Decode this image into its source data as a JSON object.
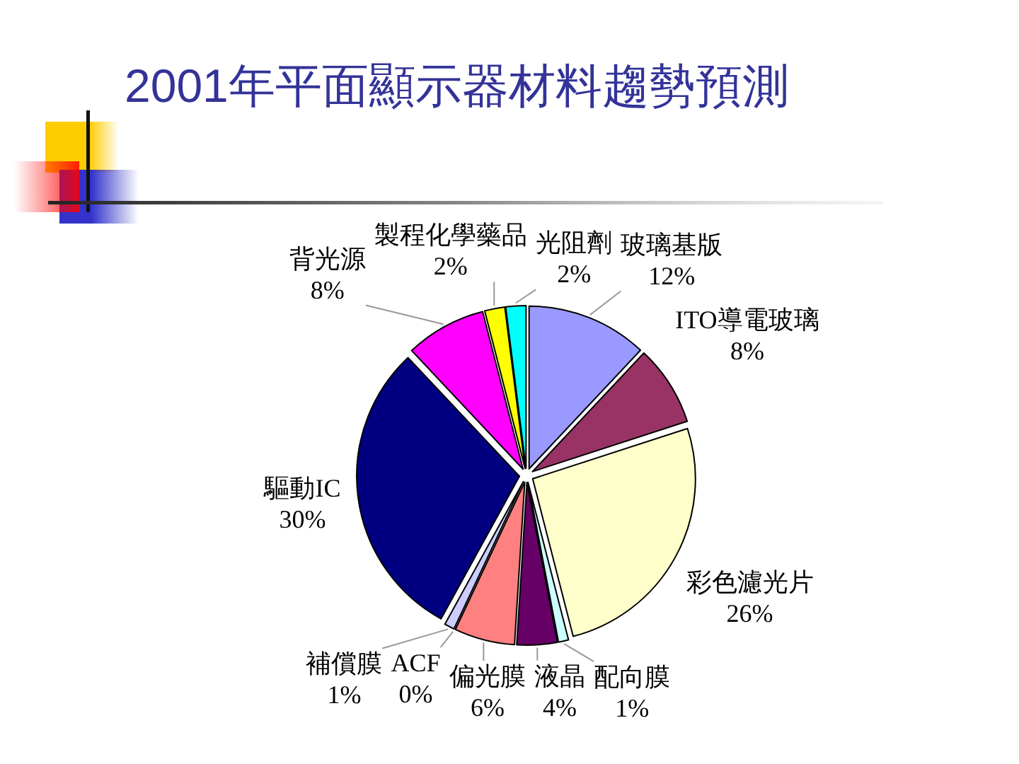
{
  "chart_data": {
    "type": "pie",
    "title": "2001年平面顯示器材料趨勢預測",
    "categories": [
      "玻璃基版",
      "ITO導電玻璃",
      "彩色濾光片",
      "配向膜",
      "液晶",
      "偏光膜",
      "ACF",
      "補償膜",
      "驅動IC",
      "背光源",
      "製程化學藥品",
      "光阻劑"
    ],
    "values": [
      12,
      8,
      26,
      1,
      4,
      6,
      0,
      1,
      30,
      8,
      2,
      2
    ],
    "colors": [
      "#9999ff",
      "#993366",
      "#ffffcc",
      "#ccffff",
      "#660066",
      "#ff8080",
      null,
      "#ccccff",
      "#000080",
      "#ff00ff",
      "#ffff00",
      "#00ffff"
    ],
    "value_labels": [
      "12%",
      "8%",
      "26%",
      "1%",
      "4%",
      "6%",
      "0%",
      "1%",
      "30%",
      "8%",
      "2%",
      "2%"
    ]
  }
}
